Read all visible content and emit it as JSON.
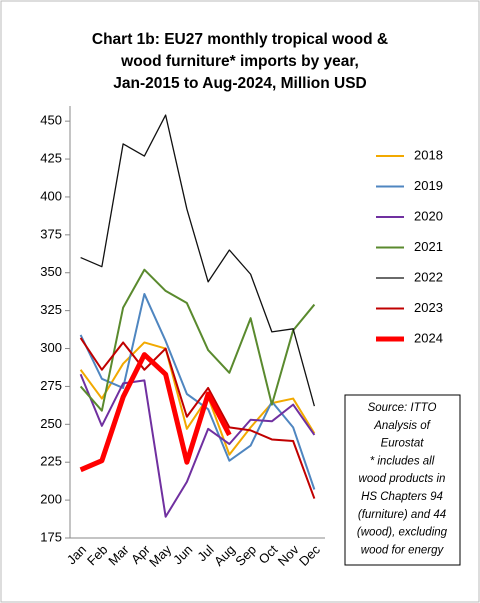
{
  "chart_data": {
    "type": "line",
    "title": [
      "Chart 1b: EU27 monthly tropical wood &",
      "wood furniture* imports by year,",
      "Jan-2015 to Aug-2024, Million USD"
    ],
    "categories": [
      "Jan",
      "Feb",
      "Mar",
      "Apr",
      "May",
      "Jun",
      "Jul",
      "Aug",
      "Sep",
      "Oct",
      "Nov",
      "Dec"
    ],
    "series": [
      {
        "name": "2018",
        "color": "#f2a900",
        "width": 2,
        "values": [
          286,
          267,
          290,
          304,
          300,
          247,
          268,
          230,
          248,
          264,
          267,
          244
        ]
      },
      {
        "name": "2019",
        "color": "#4f86c0",
        "width": 2,
        "values": [
          309,
          280,
          274,
          336,
          305,
          270,
          260,
          226,
          236,
          265,
          248,
          207
        ]
      },
      {
        "name": "2020",
        "color": "#7030a0",
        "width": 2,
        "values": [
          283,
          249,
          277,
          279,
          189,
          212,
          247,
          237,
          253,
          252,
          263,
          243
        ]
      },
      {
        "name": "2021",
        "color": "#5a8a2e",
        "width": 2,
        "values": [
          275,
          259,
          327,
          352,
          338,
          330,
          299,
          284,
          320,
          263,
          312,
          329
        ]
      },
      {
        "name": "2022",
        "color": "#111111",
        "width": 1.3,
        "values": [
          360,
          354,
          435,
          427,
          454,
          392,
          344,
          365,
          349,
          311,
          313,
          262
        ]
      },
      {
        "name": "2023",
        "color": "#c00000",
        "width": 2,
        "values": [
          307,
          286,
          304,
          286,
          300,
          255,
          274,
          248,
          246,
          240,
          239,
          201
        ]
      },
      {
        "name": "2024",
        "color": "#ff0000",
        "width": 5,
        "values": [
          220,
          226,
          268,
          296,
          283,
          225,
          270,
          243,
          null,
          null,
          null,
          null
        ]
      }
    ],
    "ylim": [
      175,
      460
    ],
    "yticks": [
      175,
      200,
      225,
      250,
      275,
      300,
      325,
      350,
      375,
      400,
      425,
      450
    ],
    "note": [
      "Source: ITTO",
      "Analysis of",
      "Eurostat",
      "* includes all",
      "wood products in",
      "HS Chapters 94",
      "(furniture) and 44",
      "(wood), excluding",
      "wood for energy"
    ]
  }
}
